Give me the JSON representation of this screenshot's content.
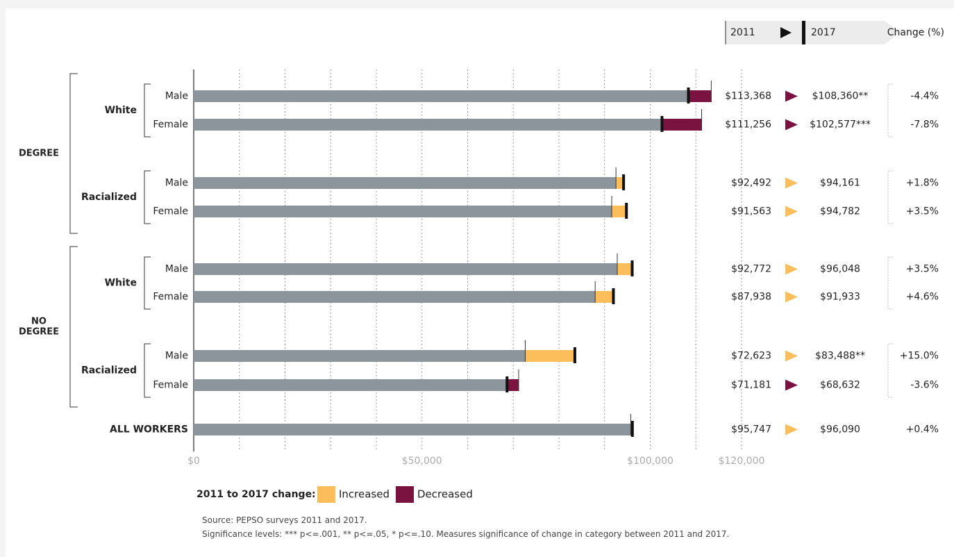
{
  "chart_data": {
    "type": "bar",
    "xlim": [
      0,
      120000
    ],
    "x_ticks": [
      0,
      50000,
      100000,
      120000
    ],
    "x_tick_labels": [
      "$0",
      "$50,000",
      "$100,000",
      "$120,000"
    ],
    "header": {
      "from_label": "2011",
      "to_label": "2017",
      "change_label": "Change (%)"
    },
    "groups": [
      {
        "label": "DEGREE",
        "subgroups": [
          {
            "label": "White",
            "rows": [
              {
                "label": "Male",
                "v2011": 113368,
                "v2017": 108360,
                "v2011_label": "$113,368",
                "v2017_label": "$108,360**",
                "change": "-4.4%",
                "direction": "decreased"
              },
              {
                "label": "Female",
                "v2011": 111256,
                "v2017": 102577,
                "v2011_label": "$111,256",
                "v2017_label": "$102,577***",
                "change": "-7.8%",
                "direction": "decreased"
              }
            ]
          },
          {
            "label": "Racialized",
            "rows": [
              {
                "label": "Male",
                "v2011": 92492,
                "v2017": 94161,
                "v2011_label": "$92,492",
                "v2017_label": "$94,161",
                "change": "+1.8%",
                "direction": "increased"
              },
              {
                "label": "Female",
                "v2011": 91563,
                "v2017": 94782,
                "v2011_label": "$91,563",
                "v2017_label": "$94,782",
                "change": "+3.5%",
                "direction": "increased"
              }
            ]
          }
        ]
      },
      {
        "label": "NO DEGREE",
        "subgroups": [
          {
            "label": "White",
            "rows": [
              {
                "label": "Male",
                "v2011": 92772,
                "v2017": 96048,
                "v2011_label": "$92,772",
                "v2017_label": "$96,048",
                "change": "+3.5%",
                "direction": "increased"
              },
              {
                "label": "Female",
                "v2011": 87938,
                "v2017": 91933,
                "v2011_label": "$87,938",
                "v2017_label": "$91,933",
                "change": "+4.6%",
                "direction": "increased"
              }
            ]
          },
          {
            "label": "Racialized",
            "rows": [
              {
                "label": "Male",
                "v2011": 72623,
                "v2017": 83488,
                "v2011_label": "$72,623",
                "v2017_label": "$83,488**",
                "change": "+15.0%",
                "direction": "increased"
              },
              {
                "label": "Female",
                "v2011": 71181,
                "v2017": 68632,
                "v2011_label": "$71,181",
                "v2017_label": "$68,632",
                "change": "-3.6%",
                "direction": "decreased"
              }
            ]
          }
        ]
      }
    ],
    "total": {
      "label": "ALL WORKERS",
      "v2011": 95747,
      "v2017": 96090,
      "v2011_label": "$95,747",
      "v2017_label": "$96,090",
      "change": "+0.4%",
      "direction": "increased"
    },
    "legend": {
      "title": "2011 to 2017 change:",
      "increased": "Increased",
      "decreased": "Decreased"
    },
    "colors": {
      "bar": "#8c959c",
      "increased": "#fbbe5b",
      "decreased": "#7a1340",
      "axis": "#222222",
      "grid": "#999999"
    }
  },
  "footnotes": {
    "source": "Source: PEPSO surveys 2011 and 2017.",
    "significance": "Significance levels: *** p<=.001, ** p<=.05, * p<=.10. Measures significance of change in category between 2011 and 2017."
  }
}
